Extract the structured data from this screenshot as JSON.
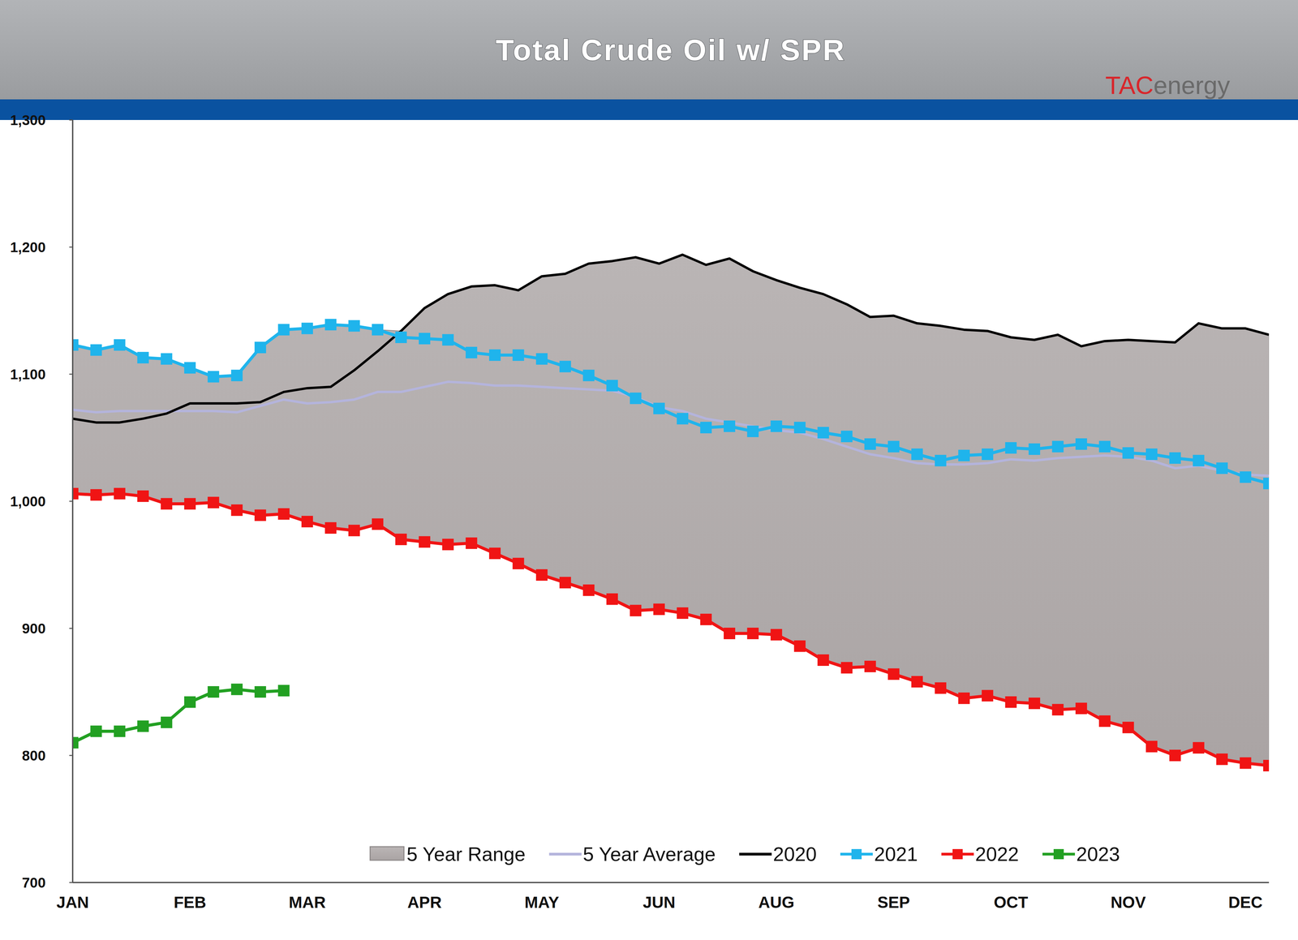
{
  "chart_data": {
    "type": "line",
    "title": "Total Crude Oil w/ SPR",
    "logo": "TACenergy",
    "categories": [
      "JAN",
      null,
      null,
      null,
      null,
      "FEB",
      null,
      null,
      null,
      null,
      "MAR",
      null,
      null,
      null,
      null,
      "APR",
      null,
      null,
      null,
      null,
      "MAY",
      null,
      null,
      null,
      null,
      "JUN",
      null,
      null,
      null,
      null,
      "AUG",
      null,
      null,
      null,
      null,
      "SEP",
      null,
      null,
      null,
      null,
      "OCT",
      null,
      null,
      null,
      null,
      "NOV",
      null,
      null,
      null,
      null,
      "DEC",
      null
    ],
    "ylim": [
      700,
      1300
    ],
    "yticks": [
      700,
      800,
      900,
      {
        "value": 1000,
        "label": "1,000"
      },
      {
        "value": 1100,
        "label": "1,100"
      },
      {
        "value": 1200,
        "label": "1,200"
      },
      {
        "value": 1300,
        "label": "1,300"
      }
    ],
    "grid": false,
    "legend": "bottom",
    "series": [
      {
        "name": "5 Year Range",
        "type": "range",
        "color": "#bab5b5",
        "marker": "none",
        "values": [
          1123,
          1119,
          1123,
          1113,
          1112,
          1105,
          1098,
          1099,
          1121,
          1135,
          1136,
          1139,
          1138,
          1135,
          1134,
          1152,
          1163,
          1169,
          1170,
          1166,
          1177,
          1179,
          1187,
          1189,
          1192,
          1187,
          1194,
          1186,
          1191,
          1181,
          1174,
          1168,
          1163,
          1155,
          1145,
          1146,
          1140,
          1138,
          1135,
          1134,
          1129,
          1127,
          1131,
          1122,
          1126,
          1127,
          1126,
          1125,
          1140,
          1136,
          1136,
          1131
        ],
        "low": [
          1006,
          1005,
          1006,
          1004,
          998,
          998,
          999,
          993,
          989,
          990,
          984,
          979,
          977,
          982,
          970,
          968,
          966,
          967,
          959,
          951,
          942,
          936,
          930,
          923,
          914,
          915,
          912,
          907,
          896,
          896,
          895,
          886,
          875,
          869,
          870,
          864,
          858,
          853,
          845,
          847,
          842,
          841,
          836,
          837,
          827,
          822,
          807,
          800,
          806,
          797,
          794,
          792
        ]
      },
      {
        "name": "5 Year Average",
        "color": "#b4b4dc",
        "marker": "none",
        "line_style": "solid",
        "values": [
          1072,
          1070,
          1071,
          1071,
          1071,
          1071,
          1071,
          1070,
          1075,
          1080,
          1077,
          1078,
          1080,
          1086,
          1086,
          1090,
          1094,
          1093,
          1091,
          1091,
          1090,
          1089,
          1088,
          1087,
          1082,
          1074,
          1071,
          1065,
          1062,
          1059,
          1056,
          1054,
          1049,
          1043,
          1037,
          1034,
          1030,
          1029,
          1029,
          1030,
          1033,
          1032,
          1034,
          1035,
          1036,
          1035,
          1032,
          1026,
          1028,
          1024,
          1021,
          1020
        ]
      },
      {
        "name": "2020",
        "color": "#000000",
        "marker": "none",
        "line_style": "solid",
        "values": [
          1065,
          1062,
          1062,
          1065,
          1069,
          1077,
          1077,
          1077,
          1078,
          1086,
          1089,
          1090,
          1103,
          1118,
          1134,
          1152,
          1163,
          1169,
          1170,
          1166,
          1177,
          1179,
          1187,
          1189,
          1192,
          1187,
          1194,
          1186,
          1191,
          1181,
          1174,
          1168,
          1163,
          1155,
          1145,
          1146,
          1140,
          1138,
          1135,
          1134,
          1129,
          1127,
          1131,
          1122,
          1126,
          1127,
          1126,
          1125,
          1140,
          1136,
          1136,
          1131
        ]
      },
      {
        "name": "2021",
        "color": "#1fb4ec",
        "marker": "square",
        "line_style": "solid",
        "values": [
          1123,
          1119,
          1123,
          1113,
          1112,
          1105,
          1098,
          1099,
          1121,
          1135,
          1136,
          1139,
          1138,
          1135,
          1129,
          1128,
          1127,
          1117,
          1115,
          1115,
          1112,
          1106,
          1099,
          1091,
          1081,
          1073,
          1065,
          1058,
          1059,
          1055,
          1059,
          1058,
          1054,
          1051,
          1045,
          1043,
          1037,
          1032,
          1036,
          1037,
          1042,
          1041,
          1043,
          1045,
          1043,
          1038,
          1037,
          1034,
          1032,
          1026,
          1019,
          1014
        ]
      },
      {
        "name": "2022",
        "color": "#f01414",
        "marker": "square",
        "line_style": "solid",
        "values": [
          1006,
          1005,
          1006,
          1004,
          998,
          998,
          999,
          993,
          989,
          990,
          984,
          979,
          977,
          982,
          970,
          968,
          966,
          967,
          959,
          951,
          942,
          936,
          930,
          923,
          914,
          915,
          912,
          907,
          896,
          896,
          895,
          886,
          875,
          869,
          870,
          864,
          858,
          853,
          845,
          847,
          842,
          841,
          836,
          837,
          827,
          822,
          807,
          800,
          806,
          797,
          794,
          792
        ]
      },
      {
        "name": "2023",
        "color": "#22a022",
        "marker": "square",
        "line_style": "solid",
        "values": [
          810,
          819,
          819,
          823,
          826,
          842,
          850,
          852,
          850,
          851,
          null,
          null,
          null,
          null,
          null,
          null,
          null,
          null,
          null,
          null,
          null,
          null,
          null,
          null,
          null,
          null,
          null,
          null,
          null,
          null,
          null,
          null,
          null,
          null,
          null,
          null,
          null,
          null,
          null,
          null,
          null,
          null,
          null,
          null,
          null,
          null,
          null,
          null,
          null,
          null,
          null,
          null
        ]
      }
    ]
  }
}
